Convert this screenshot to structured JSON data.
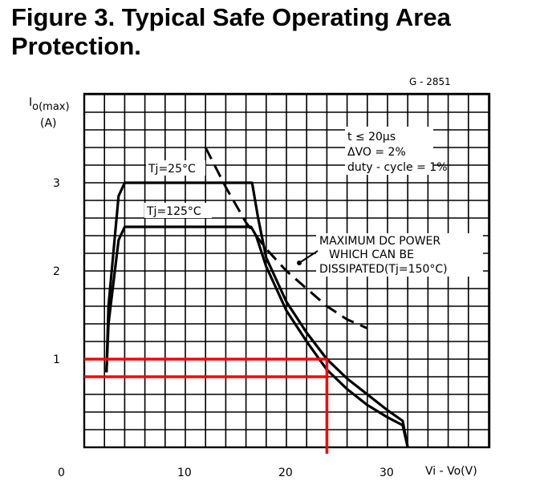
{
  "figure": {
    "title_line1": "Figure 3. Typical Safe Operating Area",
    "title_line2": "Protection."
  },
  "chart_data": {
    "type": "line",
    "code": "G - 2851",
    "ylabel_main": "I",
    "ylabel_sub": "o(max)",
    "ylabel_unit": "(A)",
    "xlabel": "Vi - Vo(V)",
    "xlim": [
      0,
      34
    ],
    "ylim": [
      0,
      3.6
    ],
    "grid": true,
    "x_ticks": [
      {
        "v": 0,
        "label": "0"
      },
      {
        "v": 10,
        "label": "10"
      },
      {
        "v": 20,
        "label": "20"
      },
      {
        "v": 30,
        "label": "30"
      }
    ],
    "y_ticks": [
      {
        "v": 1,
        "label": "1"
      },
      {
        "v": 2,
        "label": "2"
      },
      {
        "v": 3,
        "label": "3"
      }
    ],
    "conditions": [
      "t ≤ 20µs",
      "ΔVO = 2%",
      "duty - cycle = 1%"
    ],
    "series": [
      {
        "name": "Tj=25°C",
        "style": "solid",
        "x": [
          2.2,
          2.4,
          3.4,
          4.0,
          6,
          10,
          14,
          16.6,
          17.2,
          18,
          20,
          22,
          24,
          26,
          28,
          30,
          31.5,
          32
        ],
        "y": [
          0.85,
          1.6,
          2.85,
          3.0,
          3.0,
          3.0,
          3.0,
          3.0,
          2.6,
          2.15,
          1.65,
          1.3,
          1.0,
          0.78,
          0.6,
          0.42,
          0.3,
          0.0
        ]
      },
      {
        "name": "Tj=125°C",
        "style": "solid",
        "x": [
          2.2,
          2.4,
          3.4,
          4.0,
          6,
          10,
          14,
          16.5,
          17.0,
          18,
          20,
          22,
          24,
          26,
          28,
          30,
          31.5,
          32
        ],
        "y": [
          0.85,
          1.4,
          2.35,
          2.5,
          2.5,
          2.5,
          2.5,
          2.5,
          2.4,
          2.05,
          1.55,
          1.2,
          0.88,
          0.66,
          0.48,
          0.34,
          0.25,
          0.0
        ]
      },
      {
        "name": "MAXIMUM DC POWER WHICH CAN BE DISSIPATED(Tj=150°C)",
        "style": "dashed",
        "x": [
          12,
          14,
          16,
          18,
          20,
          22,
          24,
          26,
          28
        ],
        "y": [
          3.4,
          2.95,
          2.55,
          2.25,
          2.0,
          1.8,
          1.6,
          1.45,
          1.35
        ]
      }
    ],
    "annotations": {
      "tj25": "Tj=25°C",
      "tj125": "Tj=125°C",
      "maxdc_line1": "MAXIMUM DC POWER",
      "maxdc_line2": "WHICH CAN BE",
      "maxdc_line3": "DISSIPATED(Tj=150°C)"
    },
    "highlight": {
      "color": "#ff0000",
      "y_values": [
        1.0,
        0.8
      ],
      "x_value": 24
    }
  }
}
